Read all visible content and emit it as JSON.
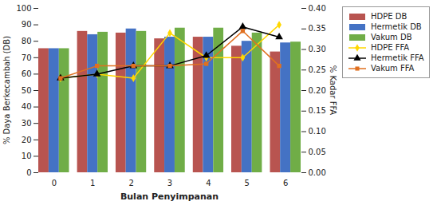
{
  "chart_data": {
    "type": "bar",
    "xlabel": "Bulan Penyimpanan",
    "ylabel": "% Daya Berkecambah (DB)",
    "y2label": "% Kadar FFA",
    "categories": [
      0,
      1,
      2,
      3,
      4,
      5,
      6
    ],
    "series": [
      {
        "name": "HDPE DB",
        "type": "bar",
        "color": "#B85450",
        "values": [
          75.5,
          86.0,
          85.0,
          81.5,
          82.5,
          77.0,
          73.5
        ]
      },
      {
        "name": "Hermetik DB",
        "type": "bar",
        "color": "#4472C4",
        "values": [
          75.5,
          84.0,
          87.5,
          82.5,
          82.5,
          80.0,
          79.0
        ]
      },
      {
        "name": "Vakum DB",
        "type": "bar",
        "color": "#70AD47",
        "values": [
          75.5,
          85.5,
          86.0,
          88.0,
          88.0,
          85.0,
          79.5
        ]
      },
      {
        "name": "HDPE FFA",
        "type": "line",
        "axis": "y2",
        "color": "#FFD700",
        "marker": "diamond",
        "values": [
          0.23,
          0.24,
          0.23,
          0.34,
          0.28,
          0.28,
          0.36
        ]
      },
      {
        "name": "Hermetik FFA",
        "type": "line",
        "axis": "y2",
        "color": "#000000",
        "marker": "triangle",
        "values": [
          0.23,
          0.24,
          0.26,
          0.26,
          0.285,
          0.355,
          0.33
        ]
      },
      {
        "name": "Vakum FFA",
        "type": "line",
        "axis": "y2",
        "color": "#E07020",
        "marker": "square",
        "values": [
          0.23,
          0.26,
          0.26,
          0.26,
          0.265,
          0.345,
          0.26
        ]
      }
    ],
    "ylim": [
      0,
      100
    ],
    "yticks": [
      0,
      10,
      20,
      30,
      40,
      50,
      60,
      70,
      80,
      90,
      100
    ],
    "y2lim": [
      0,
      0.4
    ],
    "y2ticks": [
      {
        "value": 0,
        "label": "0.00"
      },
      0.05,
      {
        "value": 0.1,
        "label": "0.10"
      },
      0.15,
      {
        "value": 0.2,
        "label": "0.20"
      },
      0.25,
      {
        "value": 0.3,
        "label": "0.30"
      },
      0.35,
      {
        "value": 0.4,
        "label": "0.40"
      }
    ],
    "grid": false,
    "legend": "right"
  }
}
